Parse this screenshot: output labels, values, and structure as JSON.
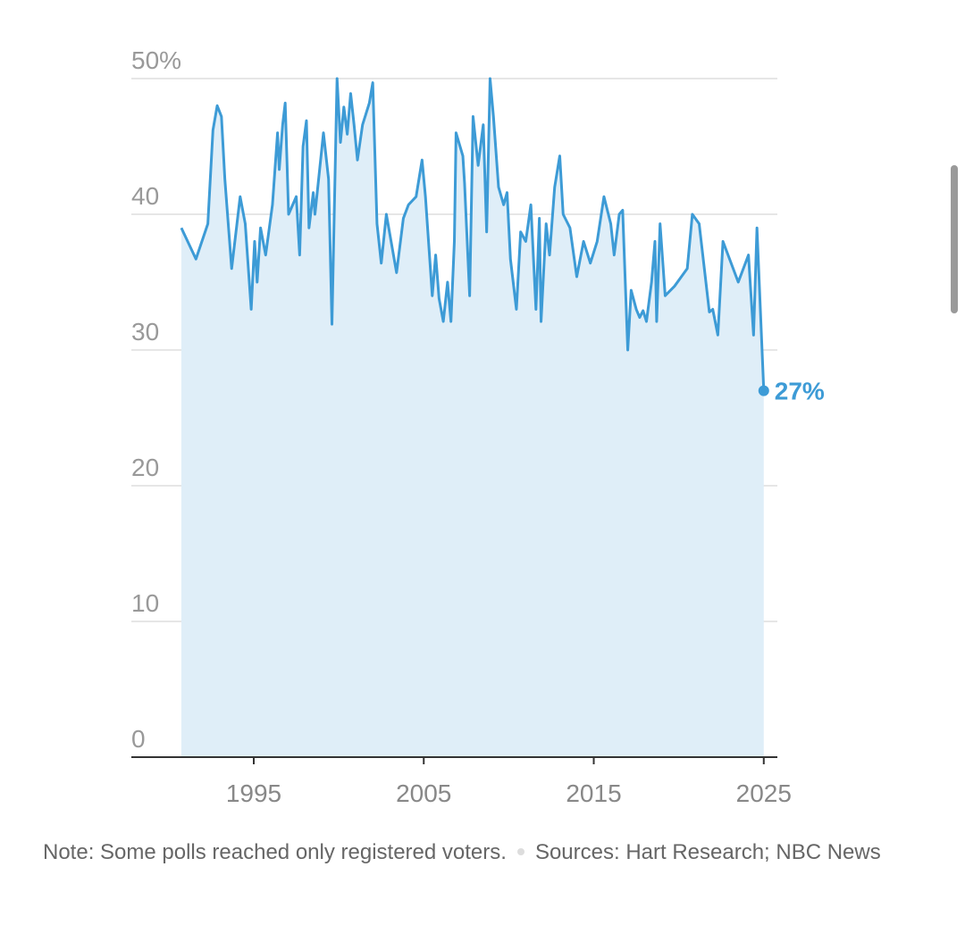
{
  "chart_data": {
    "type": "area",
    "x": [
      1990.74,
      1991.6,
      1992.3,
      1992.6,
      1992.85,
      1993.1,
      1993.3,
      1993.7,
      1994.2,
      1994.5,
      1994.85,
      1995.05,
      1995.2,
      1995.4,
      1995.7,
      1996.1,
      1996.4,
      1996.5,
      1996.7,
      1996.85,
      1997.05,
      1997.5,
      1997.7,
      1997.9,
      1998.1,
      1998.25,
      1998.5,
      1998.6,
      1999.1,
      1999.4,
      1999.6,
      1999.9,
      2000.1,
      2000.3,
      2000.5,
      2000.7,
      2000.9,
      2001.1,
      2001.4,
      2001.8,
      2002.0,
      2002.25,
      2002.5,
      2002.8,
      2003.4,
      2003.8,
      2004.1,
      2004.55,
      2004.9,
      2005.1,
      2005.5,
      2005.7,
      2005.9,
      2006.15,
      2006.4,
      2006.6,
      2006.8,
      2006.9,
      2007.3,
      2007.4,
      2007.7,
      2007.9,
      2008.2,
      2008.5,
      2008.7,
      2008.9,
      2009.1,
      2009.4,
      2009.7,
      2009.9,
      2010.1,
      2010.45,
      2010.7,
      2011.0,
      2011.3,
      2011.6,
      2011.8,
      2011.9,
      2012.2,
      2012.4,
      2012.7,
      2013.0,
      2013.2,
      2013.6,
      2014.0,
      2014.4,
      2014.8,
      2015.2,
      2015.6,
      2016.0,
      2016.2,
      2016.5,
      2016.7,
      2017.0,
      2017.2,
      2017.5,
      2017.7,
      2017.9,
      2018.1,
      2018.4,
      2018.6,
      2018.7,
      2018.9,
      2019.2,
      2019.75,
      2020.5,
      2020.8,
      2021.2,
      2021.8,
      2022.0,
      2022.3,
      2022.6,
      2023.5,
      2024.1,
      2024.4,
      2024.6,
      2025.0
    ],
    "values": [
      39,
      36.7,
      39.3,
      46.2,
      48,
      47.2,
      42.6,
      36,
      41.3,
      39.3,
      33,
      38,
      35,
      39,
      37,
      40.7,
      46,
      43.3,
      46.6,
      48.2,
      40,
      41.3,
      37,
      45,
      46.9,
      39,
      41.6,
      40,
      46,
      42.6,
      31.9,
      50,
      45.3,
      47.9,
      45.9,
      48.9,
      46.6,
      44,
      46.6,
      48.2,
      49.7,
      39.3,
      36.4,
      40,
      35.7,
      39.7,
      40.7,
      41.3,
      44,
      41.3,
      34,
      37,
      33.8,
      32.1,
      35,
      32.1,
      38,
      46,
      44.3,
      42.3,
      34,
      47.2,
      43.6,
      46.6,
      38.7,
      50,
      47.2,
      42,
      40.7,
      41.6,
      36.7,
      33,
      38.7,
      38,
      40.7,
      33,
      39.7,
      32.1,
      39.3,
      37,
      42,
      44.3,
      40,
      39,
      35.4,
      38,
      36.4,
      38,
      41.3,
      39.3,
      37,
      40,
      40.3,
      30,
      34.4,
      33,
      32.4,
      32.9,
      32.1,
      35,
      38,
      32.1,
      39.3,
      34,
      34.7,
      36,
      40,
      39.3,
      32.8,
      33,
      31.1,
      38,
      35,
      37,
      31.1,
      39,
      27
    ],
    "value_labels": [
      null,
      null,
      null,
      null,
      null,
      null,
      null,
      null,
      null,
      null,
      null,
      null,
      null,
      null,
      null,
      null,
      null,
      null,
      null,
      null,
      null,
      null,
      null,
      null,
      null,
      null,
      null,
      null,
      null,
      null,
      null,
      null,
      null,
      null,
      null,
      null,
      null,
      null,
      null,
      null,
      null,
      null,
      null,
      null,
      null,
      null,
      null,
      null,
      null,
      null,
      null,
      null,
      null,
      null,
      null,
      null,
      null,
      null,
      null,
      null,
      null,
      null,
      null,
      null,
      null,
      null,
      null,
      null,
      null,
      null,
      null,
      null,
      null,
      null,
      null,
      null,
      null,
      null,
      null,
      null,
      null,
      null,
      null,
      null,
      null,
      null,
      null,
      null,
      null,
      null,
      null,
      null,
      null,
      null,
      null,
      null,
      null,
      null,
      null,
      null,
      null,
      null,
      null,
      null,
      null,
      null,
      null,
      null,
      null,
      null,
      null,
      null,
      null,
      null,
      null,
      null,
      "27%"
    ],
    "color": "#3d9bd6",
    "fill": "#dfeef8",
    "xlim": [
      1987.8,
      2025.8
    ],
    "xticks": [
      1995,
      2005,
      2015,
      2025
    ],
    "ylim": [
      0,
      50
    ],
    "yticks": [
      0,
      10,
      20,
      30,
      40,
      {
        "value": 50,
        "label": "50%"
      }
    ],
    "grid": true,
    "note": "Note: Some polls reached only registered voters.",
    "source": "Sources: Hart Research; NBC News"
  }
}
